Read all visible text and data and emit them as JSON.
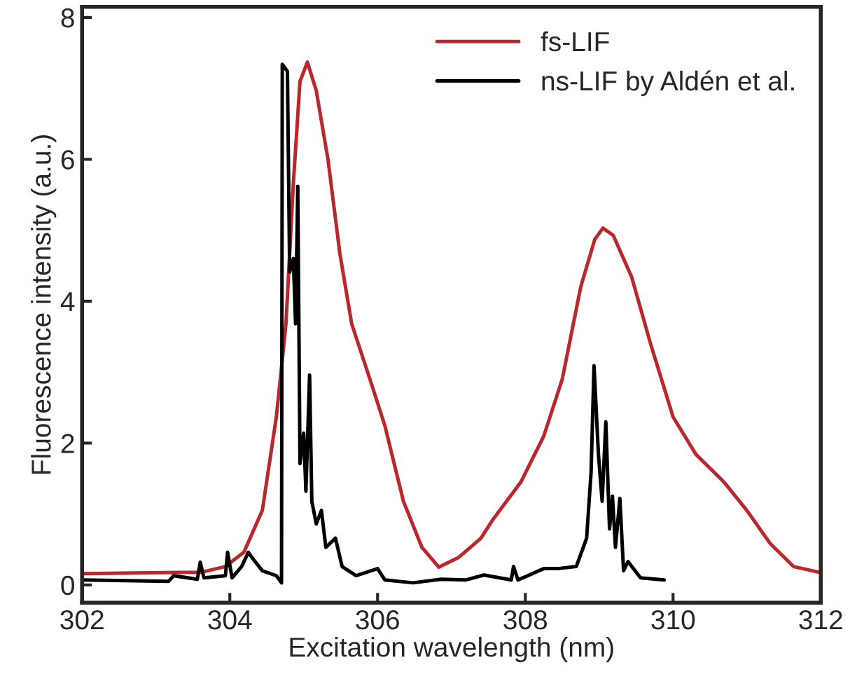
{
  "chart_data": {
    "type": "line",
    "xlabel": "Excitation wavelength (nm)",
    "ylabel": "Fluorescence intensity (a.u.)",
    "xlim": [
      302,
      312
    ],
    "xticks": [
      302,
      304,
      306,
      308,
      310,
      312
    ],
    "ylim": [
      -0.25,
      8.15
    ],
    "yticks": [
      0,
      2,
      4,
      6,
      8
    ],
    "grid": false,
    "legend": "top right",
    "line_style": "solid",
    "marker": "none",
    "series": [
      {
        "name": "fs-LIF",
        "color": "#b8282c",
        "x": [
          302,
          303.62,
          303.94,
          304.19,
          304.44,
          304.63,
          304.76,
          304.86,
          304.95,
          305.05,
          305.17,
          305.33,
          305.49,
          305.65,
          305.9,
          306.1,
          306.35,
          306.6,
          306.83,
          307.1,
          307.4,
          307.56,
          307.94,
          308.25,
          308.5,
          308.75,
          308.94,
          309.05,
          309.19,
          309.44,
          309.69,
          310,
          310.31,
          310.69,
          311,
          311.31,
          311.63,
          311.97
        ],
        "values": [
          0.16,
          0.18,
          0.26,
          0.46,
          1.05,
          2.37,
          3.68,
          5.66,
          7.1,
          7.37,
          6.97,
          5.99,
          4.67,
          3.68,
          2.89,
          2.24,
          1.18,
          0.53,
          0.25,
          0.39,
          0.66,
          0.92,
          1.45,
          2.1,
          2.9,
          4.2,
          4.87,
          5.03,
          4.93,
          4.34,
          3.42,
          2.37,
          1.84,
          1.45,
          1.05,
          0.59,
          0.26,
          0.18
        ]
      },
      {
        "name": "ns-LIF by Aldén et al.",
        "color": "#000000",
        "x": [
          302,
          303.17,
          303.24,
          303.56,
          303.6,
          303.65,
          303.94,
          303.97,
          304.03,
          304.16,
          304.25,
          304.32,
          304.44,
          304.63,
          304.7,
          304.71,
          304.78,
          304.81,
          304.86,
          304.89,
          304.92,
          304.95,
          305,
          305.03,
          305.08,
          305.11,
          305.17,
          305.24,
          305.3,
          305.43,
          305.52,
          305.71,
          306,
          306.1,
          306.48,
          306.86,
          307.19,
          307.44,
          307.81,
          307.84,
          307.9,
          308.25,
          308.44,
          308.69,
          308.83,
          308.89,
          308.93,
          308.99,
          309.04,
          309.09,
          309.14,
          309.18,
          309.22,
          309.28,
          309.33,
          309.39,
          309.56,
          309.88
        ],
        "values": [
          0.07,
          0.05,
          0.13,
          0.08,
          0.32,
          0.1,
          0.13,
          0.46,
          0.1,
          0.26,
          0.46,
          0.36,
          0.2,
          0.13,
          0.03,
          7.34,
          7.24,
          4.41,
          4.6,
          3.68,
          5.62,
          1.71,
          2.14,
          1.32,
          2.96,
          1.18,
          0.86,
          1.05,
          0.53,
          0.66,
          0.26,
          0.13,
          0.23,
          0.07,
          0.03,
          0.08,
          0.07,
          0.14,
          0.07,
          0.26,
          0.07,
          0.23,
          0.23,
          0.26,
          0.66,
          1.58,
          3.09,
          1.84,
          1.18,
          2.3,
          0.79,
          1.25,
          0.53,
          1.22,
          0.2,
          0.33,
          0.1,
          0.07
        ]
      }
    ]
  }
}
